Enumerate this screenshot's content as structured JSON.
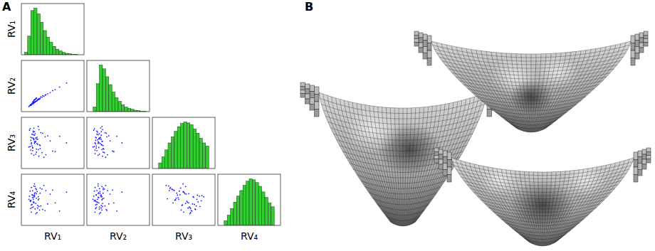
{
  "chart_data": {
    "type": "scatter_matrix",
    "label": "A",
    "tick_labels": false,
    "histogram": {
      "type": "histogram",
      "color": "#33cc33"
    },
    "scatter": {
      "type": "scatter",
      "color": "#1a1aff",
      "marker": "point"
    },
    "variables": [
      {
        "name": "RV₁",
        "xlim": [
          0,
          10
        ],
        "ylim": [
          0,
          110
        ],
        "bins": [
          0,
          0.5,
          1,
          1.5,
          2,
          2.5,
          3,
          3.5,
          4,
          4.5,
          5,
          5.5,
          6,
          6.5,
          7,
          7.5,
          8,
          8.5,
          9,
          9.5,
          10
        ],
        "counts": [
          0,
          5,
          40,
          95,
          100,
          88,
          70,
          52,
          38,
          27,
          18,
          12,
          8,
          5,
          3,
          2,
          1,
          1,
          0,
          0
        ],
        "values": [
          1.2,
          1.5,
          1.8,
          2.0,
          2.1,
          2.3,
          1.6,
          1.9,
          2.6,
          3.0,
          1.4,
          2.2,
          2.8,
          3.4,
          1.7,
          2.0,
          2.4,
          3.8,
          1.3,
          2.5,
          1.9,
          2.7,
          4.2,
          1.6,
          2.1,
          3.1,
          1.8,
          2.3,
          5.0,
          1.5,
          2.0,
          2.9,
          3.6,
          1.7,
          2.2,
          2.4,
          6.1,
          1.4,
          1.9,
          2.6,
          3.3,
          2.1,
          1.6,
          4.6,
          2.0,
          2.8,
          1.8,
          2.5,
          7.2,
          1.5,
          2.2,
          3.0,
          1.9,
          2.3,
          3.9,
          1.7,
          2.1,
          2.7,
          5.4,
          2.4
        ]
      },
      {
        "name": "RV₂",
        "xlim": [
          0,
          10
        ],
        "ylim": [
          0,
          110
        ],
        "bins": [
          0,
          0.5,
          1,
          1.5,
          2,
          2.5,
          3,
          3.5,
          4,
          4.5,
          5,
          5.5,
          6,
          6.5,
          7,
          7.5,
          8,
          8.5,
          9,
          9.5,
          10
        ],
        "counts": [
          0,
          0,
          10,
          60,
          100,
          92,
          75,
          58,
          42,
          30,
          22,
          15,
          10,
          7,
          5,
          3,
          2,
          1,
          1,
          0
        ],
        "values": [
          1.0,
          1.4,
          1.6,
          1.9,
          2.3,
          2.0,
          1.3,
          1.8,
          2.3,
          2.6,
          1.2,
          2.4,
          2.5,
          3.1,
          1.5,
          1.7,
          2.6,
          3.2,
          1.1,
          2.1,
          2.0,
          2.4,
          3.5,
          1.3,
          1.8,
          2.9,
          1.9,
          2.0,
          4.1,
          1.4,
          2.2,
          2.4,
          3.0,
          1.6,
          1.9,
          2.7,
          4.8,
          1.2,
          1.6,
          2.3,
          2.8,
          2.3,
          1.4,
          3.7,
          1.8,
          2.5,
          1.5,
          2.2,
          5.6,
          1.3,
          2.0,
          2.6,
          1.7,
          2.5,
          3.3,
          1.5,
          1.8,
          2.4,
          4.3,
          2.1
        ]
      },
      {
        "name": "RV₃",
        "xlim": [
          0,
          10
        ],
        "ylim": [
          0,
          110
        ],
        "bins": [
          0,
          0.5,
          1,
          1.5,
          2,
          2.5,
          3,
          3.5,
          4,
          4.5,
          5,
          5.5,
          6,
          6.5,
          7,
          7.5,
          8,
          8.5,
          9,
          9.5,
          10
        ],
        "counts": [
          0,
          0,
          12,
          25,
          40,
          55,
          68,
          80,
          90,
          97,
          100,
          98,
          94,
          85,
          76,
          65,
          55,
          48,
          0,
          0
        ],
        "values": [
          4.2,
          6.1,
          3.5,
          5.8,
          7.2,
          2.8,
          5.0,
          6.6,
          4.7,
          3.9,
          7.8,
          5.3,
          2.4,
          6.9,
          4.4,
          5.6,
          3.2,
          6.2,
          7.5,
          4.9,
          5.9,
          3.7,
          6.4,
          2.9,
          5.2,
          7.0,
          4.1,
          6.0,
          3.4,
          5.5,
          7.9,
          4.6,
          2.2,
          6.7,
          5.1,
          3.8,
          6.3,
          4.3,
          7.3,
          5.7,
          3.1,
          6.5,
          4.8,
          5.4,
          2.6,
          7.6,
          4.0,
          6.1,
          5.0,
          3.6,
          6.8,
          4.5,
          7.1,
          5.3,
          2.7,
          6.0,
          4.9,
          8.2,
          3.3,
          5.8
        ]
      },
      {
        "name": "RV₄",
        "xlim": [
          0,
          10
        ],
        "ylim": [
          0,
          110
        ],
        "bins": [
          0,
          0.5,
          1,
          1.5,
          2,
          2.5,
          3,
          3.5,
          4,
          4.5,
          5,
          5.5,
          6,
          6.5,
          7,
          7.5,
          8,
          8.5,
          9,
          9.5,
          10
        ],
        "counts": [
          0,
          0,
          10,
          22,
          36,
          50,
          63,
          75,
          86,
          95,
          100,
          98,
          92,
          84,
          72,
          60,
          48,
          40,
          0,
          0
        ],
        "values": [
          5.1,
          3.3,
          6.8,
          4.4,
          5.9,
          7.2,
          2.6,
          5.5,
          3.9,
          6.3,
          4.8,
          7.6,
          5.2,
          3.1,
          6.0,
          4.5,
          7.0,
          2.9,
          5.7,
          6.6,
          3.6,
          5.0,
          4.2,
          7.4,
          6.2,
          3.8,
          5.4,
          2.3,
          6.9,
          4.7,
          5.8,
          3.0,
          7.8,
          4.1,
          6.4,
          5.3,
          2.8,
          6.7,
          4.6,
          3.4,
          7.1,
          5.6,
          4.0,
          6.1,
          7.7,
          3.7,
          5.9,
          2.5,
          6.5,
          4.9,
          3.2,
          7.3,
          5.1,
          4.3,
          6.8,
          3.5,
          8.1,
          5.6,
          4.4,
          6.2
        ]
      }
    ]
  },
  "panel_b": {
    "label": "B"
  }
}
